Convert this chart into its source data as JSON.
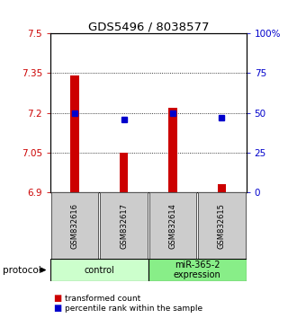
{
  "title": "GDS5496 / 8038577",
  "samples": [
    "GSM832616",
    "GSM832617",
    "GSM832614",
    "GSM832615"
  ],
  "bar_values": [
    7.34,
    7.05,
    7.22,
    6.93
  ],
  "percentile_values": [
    50,
    46,
    50,
    47
  ],
  "ylim_left": [
    6.9,
    7.5
  ],
  "ylim_right": [
    0,
    100
  ],
  "yticks_left": [
    6.9,
    7.05,
    7.2,
    7.35,
    7.5
  ],
  "ytick_labels_left": [
    "6.9",
    "7.05",
    "7.2",
    "7.35",
    "7.5"
  ],
  "yticks_right": [
    0,
    25,
    50,
    75,
    100
  ],
  "ytick_labels_right": [
    "0",
    "25",
    "50",
    "75",
    "100%"
  ],
  "bar_color": "#cc0000",
  "dot_color": "#0000cc",
  "bar_width": 0.18,
  "groups": [
    {
      "label": "control",
      "samples": [
        0,
        1
      ],
      "color": "#ccffcc"
    },
    {
      "label": "miR-365-2\nexpression",
      "samples": [
        2,
        3
      ],
      "color": "#88ee88"
    }
  ],
  "protocol_label": "protocol",
  "legend_bar_label": "transformed count",
  "legend_dot_label": "percentile rank within the sample",
  "bar_color_legend": "#cc0000",
  "dot_color_legend": "#0000cc",
  "left_tick_color": "#cc0000",
  "right_tick_color": "#0000cc",
  "dotted_grid_values": [
    7.05,
    7.2,
    7.35
  ],
  "sample_box_color": "#cccccc",
  "sample_box_edge": "#555555",
  "title_fontsize": 9.5,
  "tick_fontsize": 7.5,
  "sample_fontsize": 6,
  "group_fontsize": 7,
  "legend_fontsize": 6.5
}
